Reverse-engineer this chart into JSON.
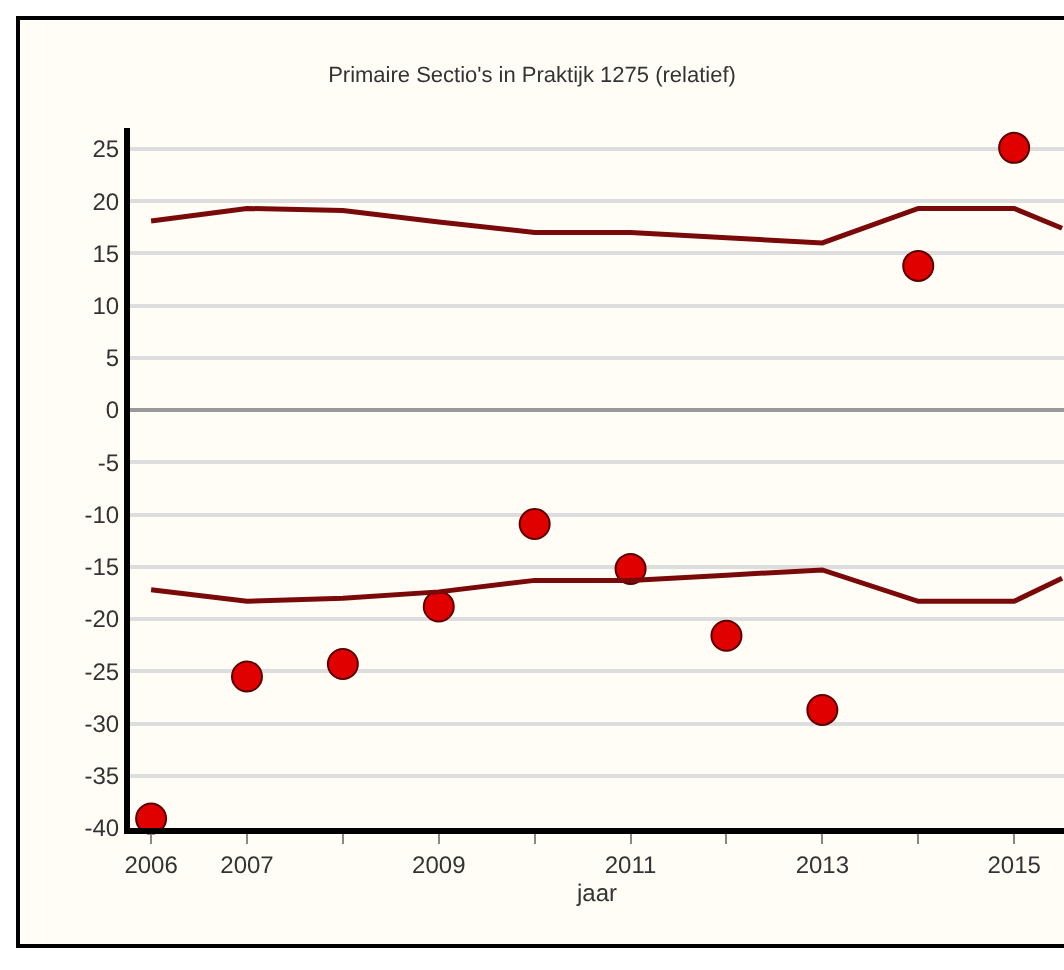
{
  "chart_data": {
    "type": "scatter",
    "title": "Primaire Sectio's in Praktijk 1275 (relatief)",
    "xlabel": "jaar",
    "x": [
      2006,
      2007,
      2008,
      2009,
      2010,
      2011,
      2012,
      2013,
      2014,
      2015
    ],
    "series": [
      {
        "marker": "circle",
        "color": "#e00000",
        "values": [
          -39.1,
          -25.5,
          -24.3,
          -18.8,
          -10.9,
          -15.2,
          -21.6,
          -28.7,
          13.8,
          25.1
        ]
      },
      {
        "type": "line",
        "marker": "none",
        "color": "#7a0a0a",
        "x": [
          2006,
          2007,
          2008,
          2009,
          2010,
          2011,
          2012,
          2013,
          2014,
          2015,
          2015.5
        ],
        "values": [
          18.1,
          19.3,
          19.1,
          18.0,
          17.0,
          17.0,
          16.5,
          16.0,
          19.3,
          19.3,
          17.4
        ]
      },
      {
        "type": "line",
        "marker": "none",
        "color": "#7a0a0a",
        "x": [
          2006,
          2007,
          2008,
          2009,
          2010,
          2011,
          2012,
          2013,
          2014,
          2015,
          2015.5
        ],
        "values": [
          -17.2,
          -18.3,
          -18.0,
          -17.4,
          -16.3,
          -16.3,
          -15.8,
          -15.3,
          -18.3,
          -18.3,
          -16.1
        ]
      }
    ],
    "xlim": [
      2005.78,
      2015.52
    ],
    "xticks": [
      2006,
      2007,
      {
        "value": 2008,
        "label": null
      },
      2009,
      {
        "value": 2010,
        "label": null
      },
      2011,
      {
        "value": 2012,
        "label": null
      },
      2013,
      {
        "value": 2014,
        "label": null
      },
      2015
    ],
    "ylim": [
      -40,
      27
    ],
    "yticks": [
      -40,
      -35,
      -30,
      -25,
      -20,
      -15,
      -10,
      -5,
      0,
      5,
      10,
      15,
      20,
      25
    ],
    "grid": "y",
    "legend": false
  }
}
